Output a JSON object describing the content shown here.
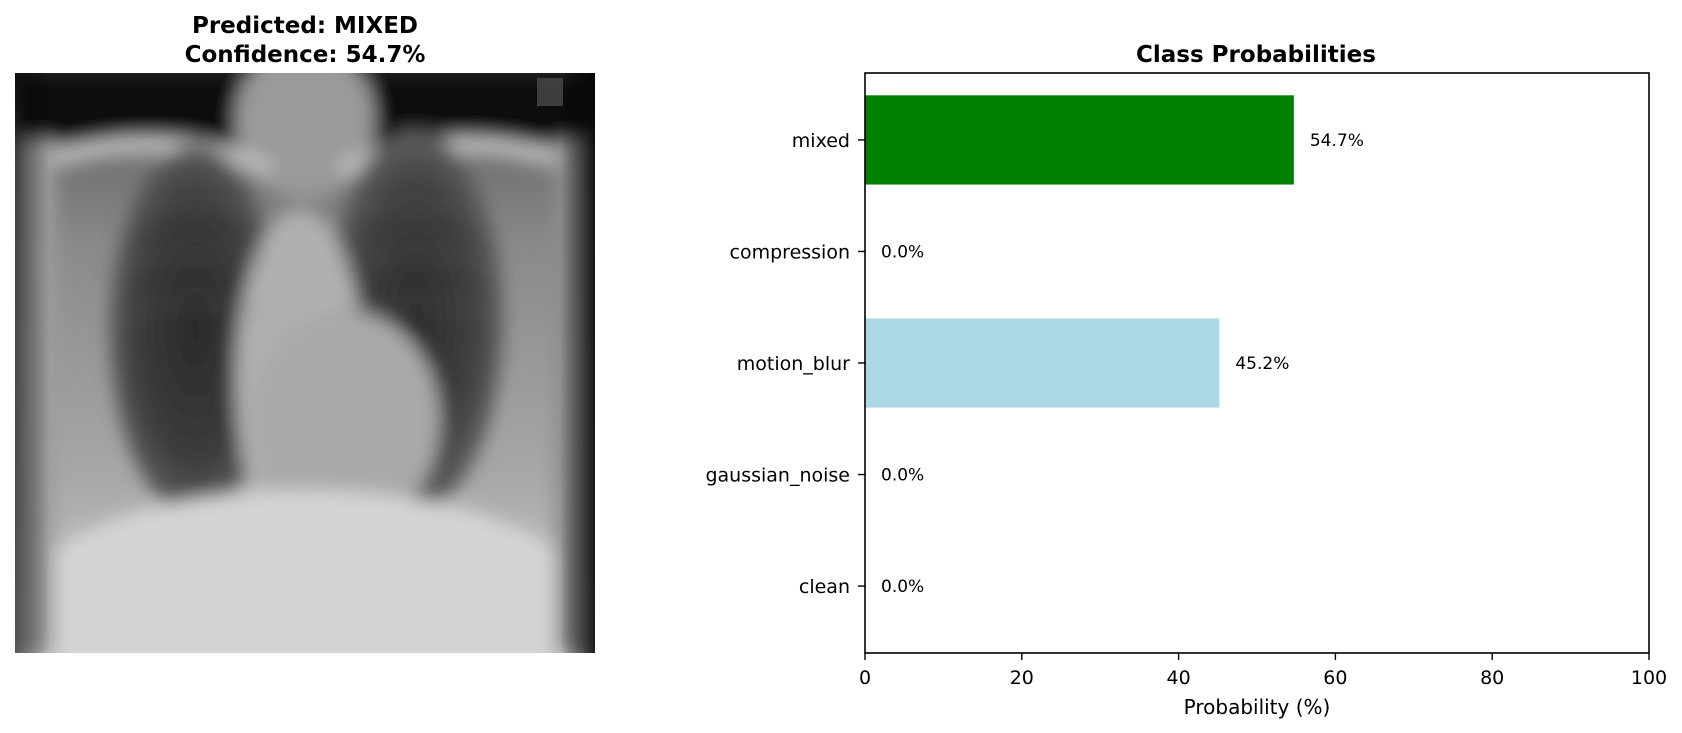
{
  "image_panel": {
    "title_line1": "Predicted: MIXED",
    "title_line2": "Confidence: 54.7%"
  },
  "chart_data": {
    "type": "bar",
    "orientation": "horizontal",
    "title": "Class Probabilities",
    "xlabel": "Probability (%)",
    "ylabel": "",
    "xlim": [
      0,
      100
    ],
    "xticks": [
      "0",
      "20",
      "40",
      "60",
      "80",
      "100"
    ],
    "categories": [
      "clean",
      "gaussian_noise",
      "motion_blur",
      "compression",
      "mixed"
    ],
    "values": [
      0.0,
      0.0,
      45.2,
      0.0,
      54.7
    ],
    "value_labels": [
      "0.0%",
      "0.0%",
      "45.2%",
      "0.0%",
      "54.7%"
    ],
    "colors": [
      "#add8e6",
      "#add8e6",
      "#add8e6",
      "#add8e6",
      "#008000"
    ],
    "grid": false,
    "legend": "none"
  }
}
